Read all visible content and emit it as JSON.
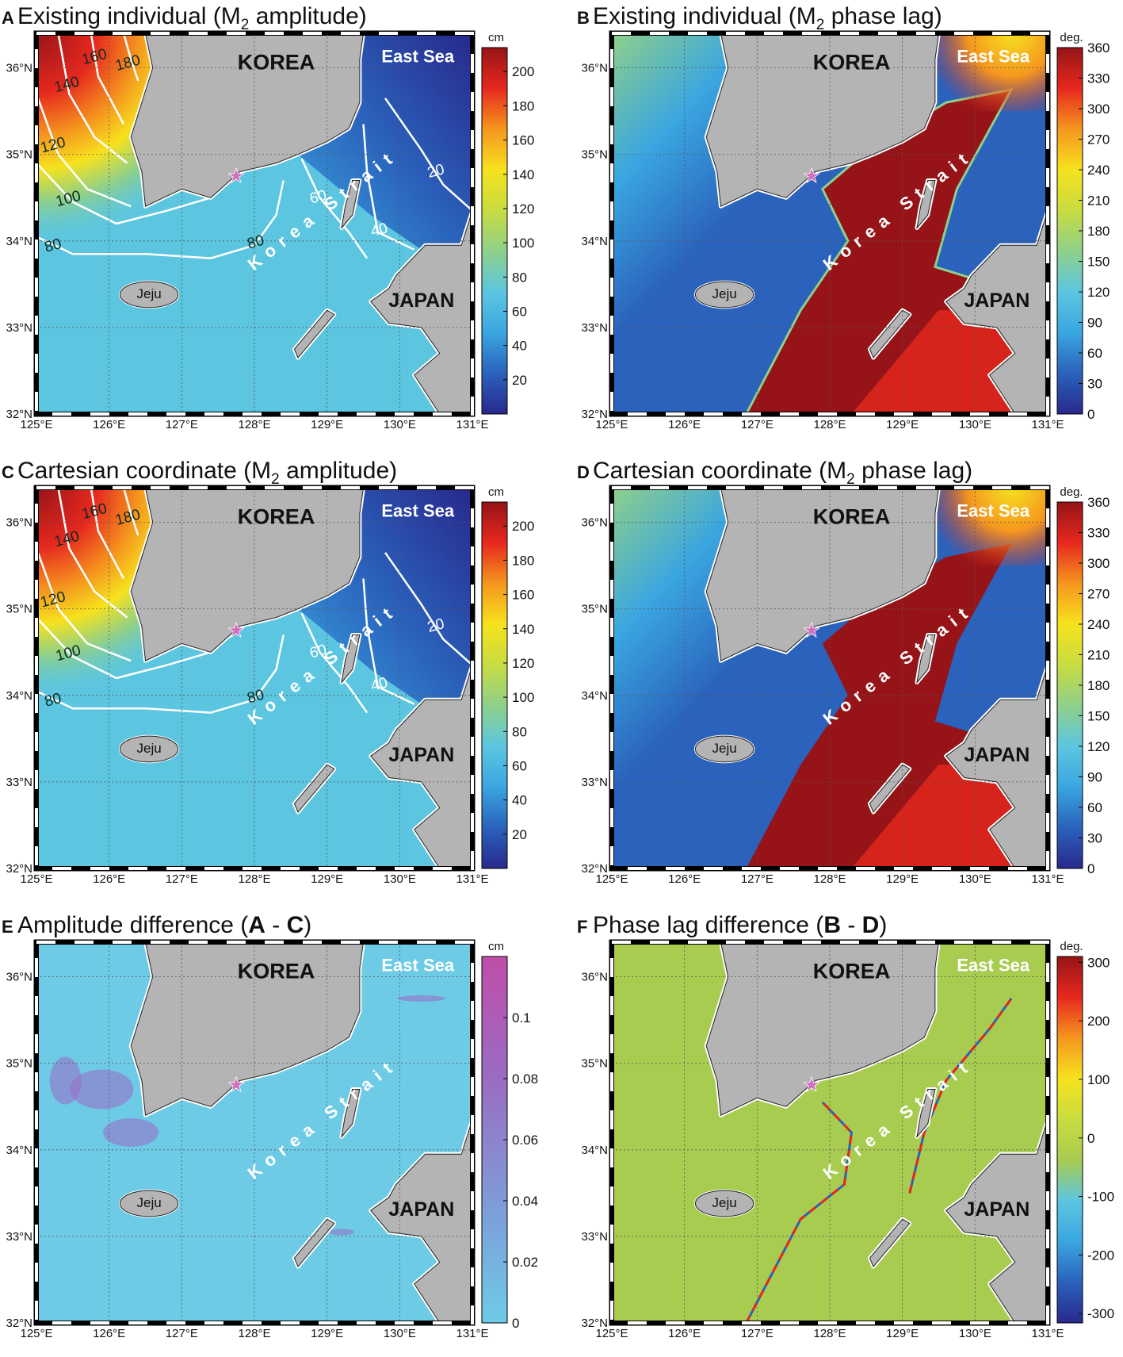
{
  "axes": {
    "xlim": [
      125,
      131
    ],
    "ylim": [
      32,
      36.4
    ],
    "xticks": [
      {
        "value": 125,
        "label": "125°E"
      },
      {
        "value": 126,
        "label": "126°E"
      },
      {
        "value": 127,
        "label": "127°E"
      },
      {
        "value": 128,
        "label": "128°E"
      },
      {
        "value": 129,
        "label": "129°E"
      },
      {
        "value": 130,
        "label": "130°E"
      },
      {
        "value": 131,
        "label": "131°E"
      }
    ],
    "yticks": [
      {
        "value": 32,
        "label": "32°N"
      },
      {
        "value": 33,
        "label": "33°N"
      },
      {
        "value": 34,
        "label": "34°N"
      },
      {
        "value": 35,
        "label": "35°N"
      },
      {
        "value": 36,
        "label": "36°N"
      }
    ]
  },
  "places": {
    "korea": "KOREA",
    "east_sea": "East Sea",
    "japan": "JAPAN",
    "jeju": "Jeju",
    "strait": "Korea Strait"
  },
  "panels": [
    {
      "label": "A",
      "field": "amplitude",
      "title": [
        {
          "text": "Existing individual (M"
        },
        {
          "text": "2",
          "style": "sub"
        },
        {
          "text": " amplitude)"
        }
      ],
      "unit": "cm",
      "clim": [
        0,
        214
      ],
      "cticks": [
        20,
        40,
        60,
        80,
        100,
        120,
        140,
        160,
        180,
        200
      ],
      "colormap": [
        "#28288c",
        "#2a62bc",
        "#3aa6e0",
        "#5cc6e0",
        "#8fd08a",
        "#c8dc40",
        "#f6e21e",
        "#f5961e",
        "#e6281e",
        "#961418"
      ],
      "contours": [
        180,
        160,
        140,
        120,
        100,
        80,
        80,
        60,
        40,
        20
      ]
    },
    {
      "label": "B",
      "field": "phase",
      "title": [
        {
          "text": "Existing individual (M"
        },
        {
          "text": "2",
          "style": "sub"
        },
        {
          "text": " phase lag)"
        }
      ],
      "unit": "deg.",
      "clim": [
        0,
        360
      ],
      "cticks": [
        0,
        30,
        60,
        90,
        120,
        150,
        180,
        210,
        240,
        270,
        300,
        330,
        360
      ],
      "colormap": [
        "#28288c",
        "#2a62bc",
        "#3aa6e0",
        "#5cc6e0",
        "#8fd08a",
        "#c8dc40",
        "#f6e21e",
        "#f5961e",
        "#e6281e",
        "#961418"
      ]
    },
    {
      "label": "C",
      "field": "amplitude",
      "title": [
        {
          "text": "Cartesian coordinate (M"
        },
        {
          "text": "2",
          "style": "sub"
        },
        {
          "text": " amplitude)"
        }
      ],
      "unit": "cm",
      "clim": [
        0,
        214
      ],
      "cticks": [
        20,
        40,
        60,
        80,
        100,
        120,
        140,
        160,
        180,
        200
      ],
      "colormap": [
        "#28288c",
        "#2a62bc",
        "#3aa6e0",
        "#5cc6e0",
        "#8fd08a",
        "#c8dc40",
        "#f6e21e",
        "#f5961e",
        "#e6281e",
        "#961418"
      ],
      "contours": [
        180,
        160,
        140,
        120,
        100,
        80,
        80,
        60,
        40,
        20
      ]
    },
    {
      "label": "D",
      "field": "phase",
      "title": [
        {
          "text": "Cartesian coordinate (M"
        },
        {
          "text": "2",
          "style": "sub"
        },
        {
          "text": " phase lag)"
        }
      ],
      "unit": "deg.",
      "clim": [
        0,
        360
      ],
      "cticks": [
        0,
        30,
        60,
        90,
        120,
        150,
        180,
        210,
        240,
        270,
        300,
        330,
        360
      ],
      "colormap": [
        "#28288c",
        "#2a62bc",
        "#3aa6e0",
        "#5cc6e0",
        "#8fd08a",
        "#c8dc40",
        "#f6e21e",
        "#f5961e",
        "#e6281e",
        "#961418"
      ]
    },
    {
      "label": "E",
      "field": "amplitude_difference",
      "title": [
        {
          "text": "Amplitude difference ("
        },
        {
          "text": "A",
          "style": "bold"
        },
        {
          "text": " - "
        },
        {
          "text": "C",
          "style": "bold"
        },
        {
          "text": ")"
        }
      ],
      "unit": "cm",
      "clim": [
        0,
        0.12
      ],
      "cticks": [
        0,
        0.02,
        0.04,
        0.06,
        0.08,
        0.1
      ],
      "colormap": [
        "#6ecbe6",
        "#7f9ad8",
        "#9a6cc4",
        "#c04ea8"
      ]
    },
    {
      "label": "F",
      "field": "phase_difference",
      "title": [
        {
          "text": "Phase lag difference ("
        },
        {
          "text": "B",
          "style": "bold"
        },
        {
          "text": " - "
        },
        {
          "text": "D",
          "style": "bold"
        },
        {
          "text": ")"
        }
      ],
      "unit": "deg.",
      "clim": [
        -316,
        310
      ],
      "cticks": [
        -300,
        -200,
        -100,
        0,
        100,
        200,
        300
      ],
      "colormap": [
        "#28288c",
        "#2a62bc",
        "#3aa6e0",
        "#5cc6e0",
        "#a8cc50",
        "#c8dc40",
        "#f6e21e",
        "#f5961e",
        "#e6281e",
        "#961418"
      ]
    }
  ]
}
